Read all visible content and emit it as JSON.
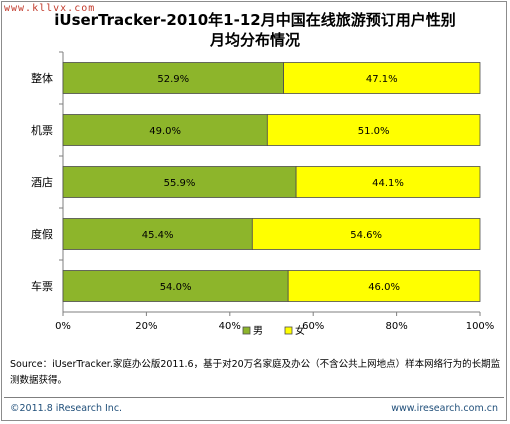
{
  "watermark": "www.kllvx.com",
  "title_line1": "iUserTracker-2010年1-12月中国在线旅游预订用户性别",
  "title_line2": "月均分布情况",
  "colors": {
    "male": "#8db52b",
    "female": "#ffff00",
    "bar_stroke": "#4d4d4d",
    "axis": "#7f7f7f"
  },
  "chart_data": {
    "type": "bar",
    "orientation": "horizontal",
    "stacked": "percent",
    "categories": [
      "整体",
      "机票",
      "酒店",
      "度假",
      "车票"
    ],
    "series": [
      {
        "name": "男",
        "values": [
          52.9,
          49.0,
          55.9,
          45.4,
          54.0
        ],
        "labels": [
          "52.9%",
          "49.0%",
          "55.9%",
          "45.4%",
          "54.0%"
        ]
      },
      {
        "name": "女",
        "values": [
          47.1,
          51.0,
          44.1,
          54.6,
          46.0
        ],
        "labels": [
          "47.1%",
          "51.0%",
          "44.1%",
          "54.6%",
          "46.0%"
        ]
      }
    ],
    "xlim": [
      0,
      100
    ],
    "x_ticks": [
      "0%",
      "20%",
      "40%",
      "60%",
      "80%",
      "100%"
    ],
    "grid": false,
    "legend_position": "bottom"
  },
  "source_text": "Source：iUserTracker.家庭办公版2011.6，基于对20万名家庭及办公（不含公共上网地点）样本网络行为的长期监测数据获得。",
  "footer_left": "©2011.8 iResearch Inc.",
  "footer_right": "www.iresearch.com.cn"
}
